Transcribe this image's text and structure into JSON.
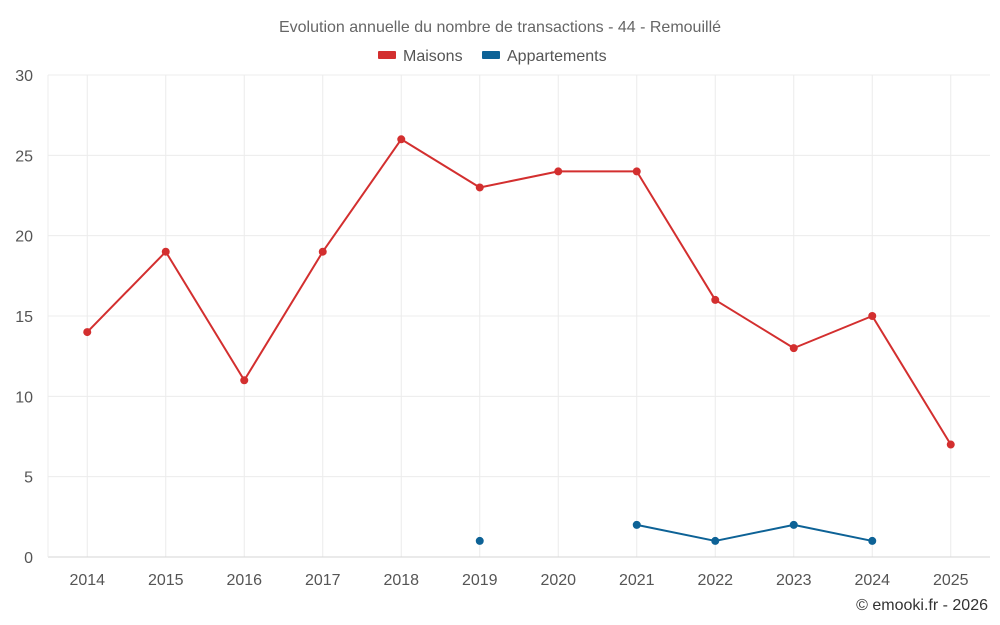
{
  "chart_data": {
    "type": "line",
    "title": "Evolution annuelle du nombre de transactions - 44 - Remouillé",
    "categories": [
      "2014",
      "2015",
      "2016",
      "2017",
      "2018",
      "2019",
      "2020",
      "2021",
      "2022",
      "2023",
      "2024",
      "2025"
    ],
    "series": [
      {
        "name": "Maisons",
        "color": "#d32f2f",
        "values": [
          14,
          19,
          11,
          19,
          26,
          23,
          24,
          24,
          16,
          13,
          15,
          7
        ]
      },
      {
        "name": "Appartements",
        "color": "#0d6296",
        "values": [
          null,
          null,
          null,
          null,
          null,
          1,
          null,
          2,
          1,
          2,
          1,
          null
        ]
      }
    ],
    "ylim": [
      0,
      30
    ],
    "yticks": [
      0,
      5,
      10,
      15,
      20,
      25,
      30
    ],
    "xlabel": "",
    "ylabel": "",
    "grid": true,
    "legend": "top-center"
  },
  "footer": {
    "copyright": "© emooki.fr - 2026"
  }
}
